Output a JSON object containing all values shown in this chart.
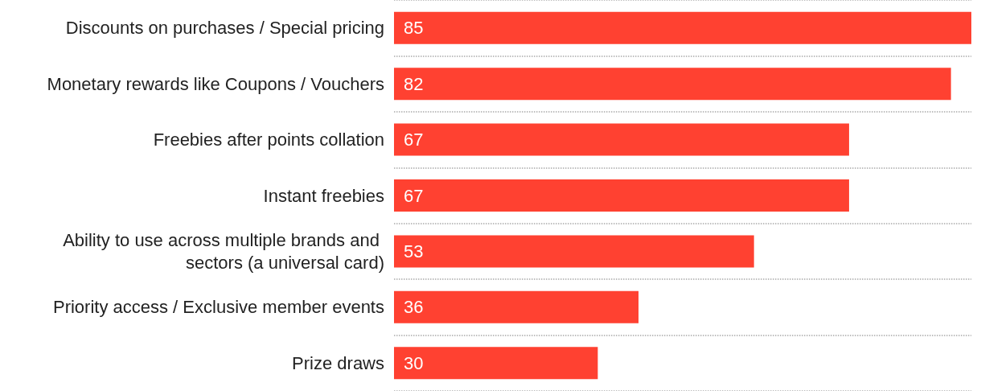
{
  "chart_data": {
    "type": "bar",
    "orientation": "horizontal",
    "categories": [
      "Discounts on purchases / Special pricing",
      "Monetary rewards like Coupons / Vouchers",
      "Freebies after points collation",
      "Instant freebies",
      "Ability to use across multiple brands and sectors (a universal card)",
      "Priority access / Exclusive member events",
      "Prize draws"
    ],
    "values": [
      85,
      82,
      67,
      67,
      53,
      36,
      30
    ],
    "color": "#ff4131",
    "data_labels": true,
    "grid": "y"
  }
}
